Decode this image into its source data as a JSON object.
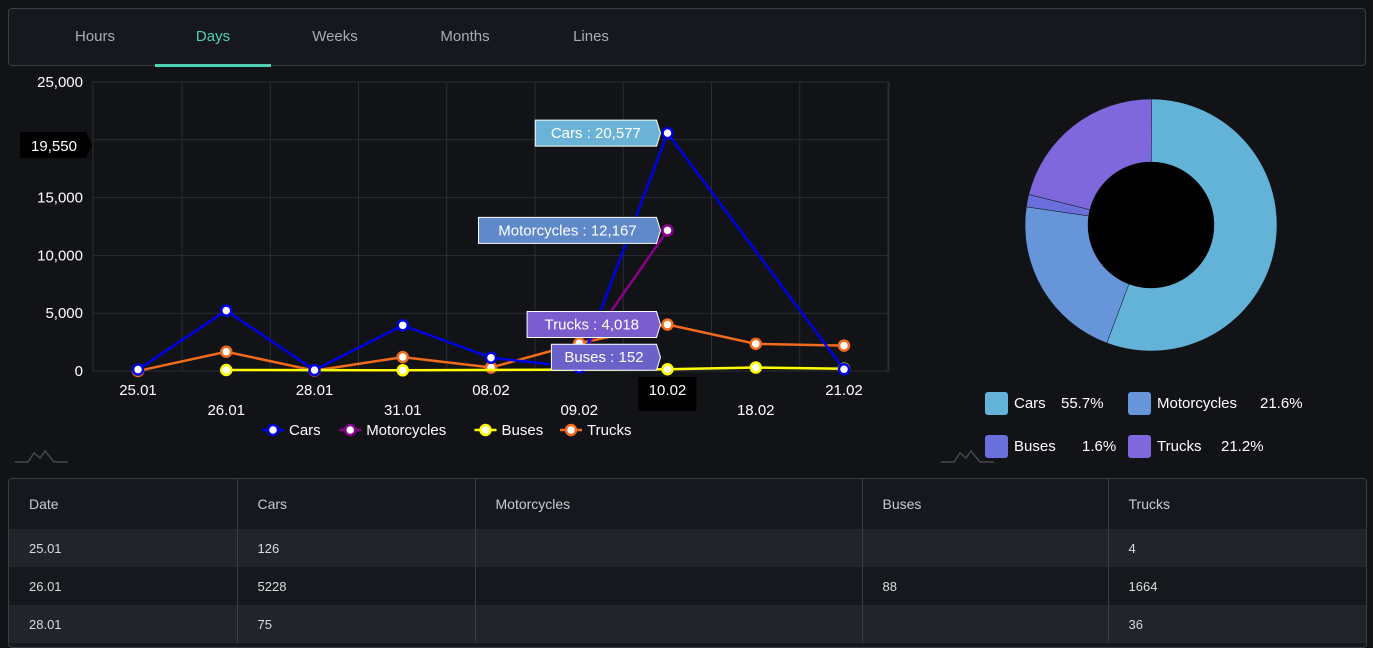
{
  "tabs": [
    {
      "label": "Hours",
      "active": false
    },
    {
      "label": "Days",
      "active": true
    },
    {
      "label": "Weeks",
      "active": false
    },
    {
      "label": "Months",
      "active": false
    },
    {
      "label": "Lines",
      "active": false
    }
  ],
  "chart_data": [
    {
      "type": "line",
      "x": [
        "25.01",
        "26.01",
        "28.01",
        "31.01",
        "08.02",
        "09.02",
        "10.02",
        "18.02",
        "21.02"
      ],
      "ylim": [
        0,
        25000
      ],
      "yticks": [
        "0",
        "5,000",
        "10,000",
        "15,000",
        "20,000",
        "25,000"
      ],
      "crosshair": {
        "y_label": "19,550",
        "x_label": "10.02"
      },
      "grid": true,
      "legend_position": "bottom",
      "series": [
        {
          "name": "Cars",
          "color": "#0000e6",
          "values": [
            126,
            5228,
            75,
            3950,
            1150,
            300,
            20577,
            null,
            150
          ]
        },
        {
          "name": "Motorcycles",
          "color": "#8b008b",
          "values": [
            null,
            null,
            null,
            null,
            null,
            1200,
            12167,
            null,
            null
          ]
        },
        {
          "name": "Buses",
          "color": "#ffff00",
          "values": [
            null,
            88,
            null,
            60,
            null,
            null,
            152,
            300,
            200
          ]
        },
        {
          "name": "Trucks",
          "color": "#f26a1b",
          "values": [
            4,
            1664,
            36,
            1200,
            300,
            2400,
            4018,
            2350,
            2200
          ]
        }
      ],
      "tooltips": [
        {
          "label": "Cars : 20,577",
          "series": "Cars",
          "bg": "#6bb3d6"
        },
        {
          "label": "Motorcycles : 12,167",
          "series": "Motorcycles",
          "bg": "#5f89c9"
        },
        {
          "label": "Trucks : 4,018",
          "series": "Trucks",
          "bg": "#7b5ccc"
        },
        {
          "label": "Buses : 152",
          "series": "Buses",
          "bg": "#6a61c9"
        }
      ]
    },
    {
      "type": "pie",
      "donut": true,
      "slices": [
        {
          "name": "Cars",
          "percent": 55.7,
          "label": "55.7%",
          "color": "#63b3d9"
        },
        {
          "name": "Motorcycles",
          "percent": 21.6,
          "label": "21.6%",
          "color": "#6795da"
        },
        {
          "name": "Buses",
          "percent": 1.6,
          "label": "1.6%",
          "color": "#6a6fdb"
        },
        {
          "name": "Trucks",
          "percent": 21.2,
          "label": "21.2%",
          "color": "#7f67dc"
        }
      ]
    }
  ],
  "table": {
    "headers": [
      "Date",
      "Cars",
      "Motorcycles",
      "Buses",
      "Trucks"
    ],
    "rows": [
      [
        "25.01",
        "126",
        "",
        "",
        "4"
      ],
      [
        "26.01",
        "5228",
        "",
        "88",
        "1664"
      ],
      [
        "28.01",
        "75",
        "",
        "",
        "36"
      ]
    ]
  }
}
